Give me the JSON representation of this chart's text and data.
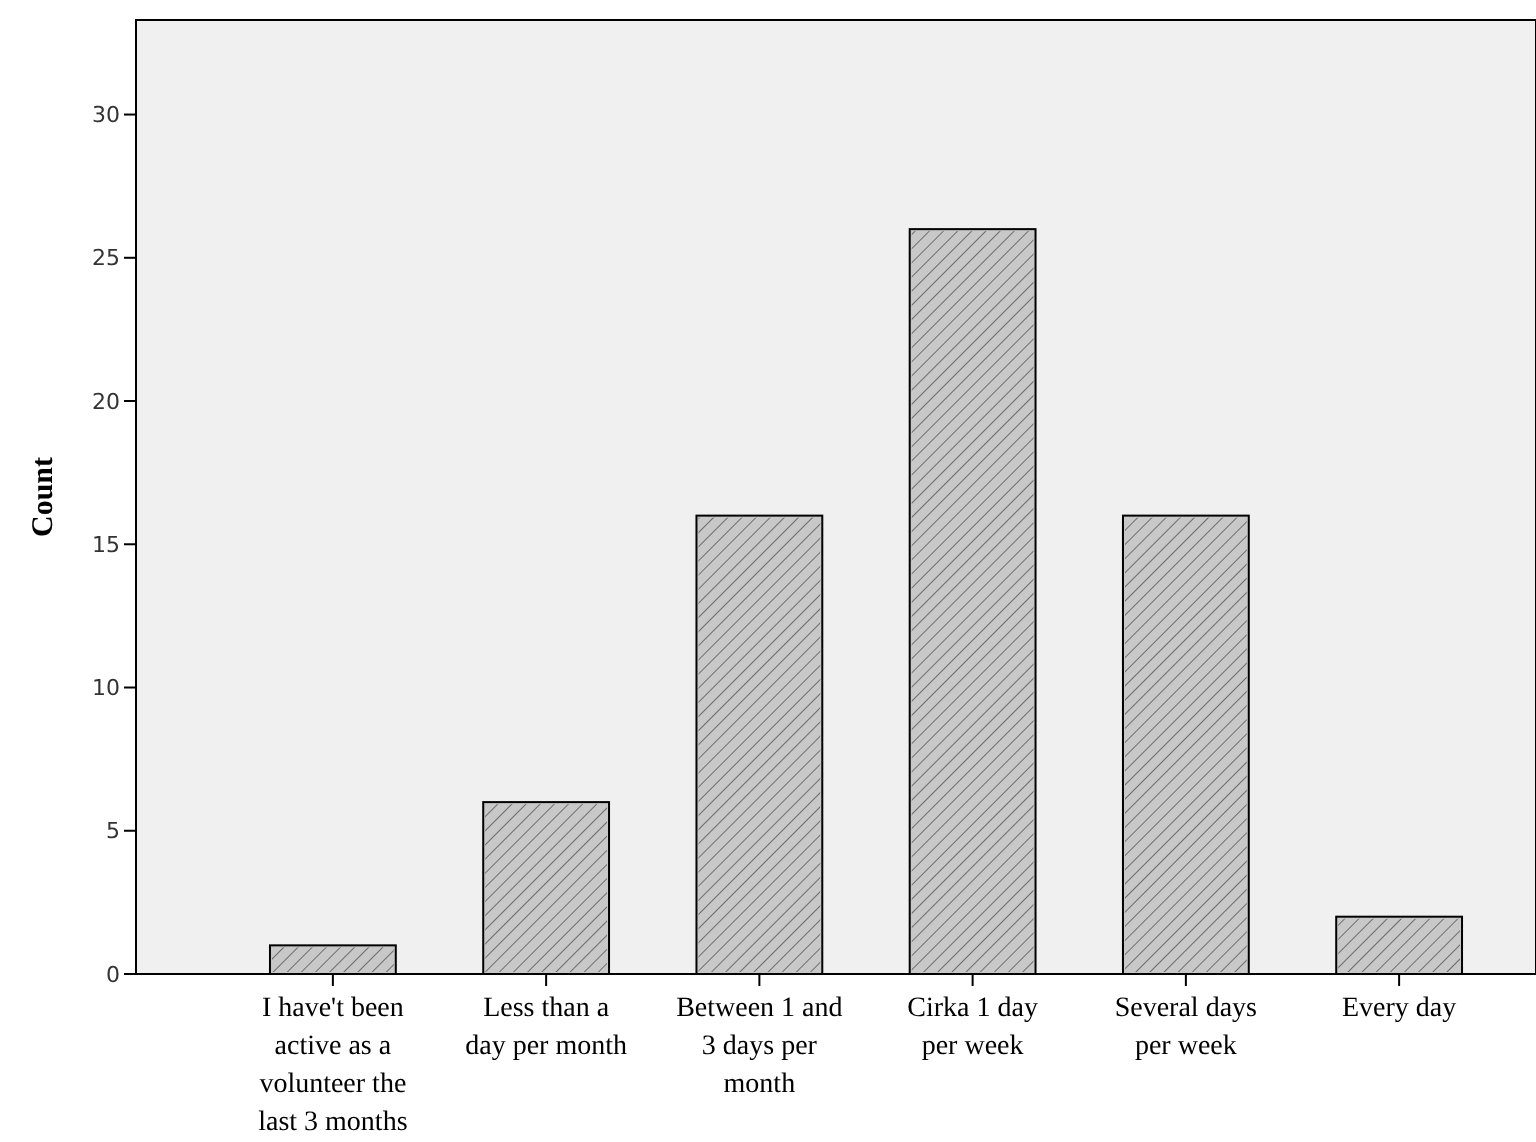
{
  "chart_data": {
    "type": "bar",
    "ylabel": "Count",
    "categories": [
      "I have't been active as a volunteer the last 3 months",
      "Less than a day per month",
      "Between 1 and 3 days per month",
      "Cirka 1 day per week",
      "Several days per week",
      "Every day"
    ],
    "values": [
      1,
      6,
      16,
      26,
      16,
      2
    ],
    "color": "#c8c8c8",
    "ylim": [
      0,
      33.3
    ],
    "yticks": [
      0,
      5,
      10,
      15,
      20,
      25,
      30
    ],
    "grid": false
  }
}
